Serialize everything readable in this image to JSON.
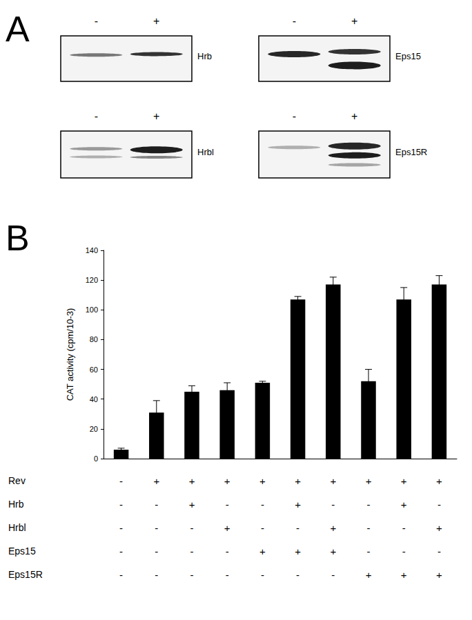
{
  "panel_a": {
    "label": "A",
    "blots": [
      {
        "name": "Hrb",
        "lanes": [
          "-",
          "+"
        ]
      },
      {
        "name": "Eps15",
        "lanes": [
          "-",
          "+"
        ]
      },
      {
        "name": "Hrbl",
        "lanes": [
          "-",
          "+"
        ]
      },
      {
        "name": "Eps15R",
        "lanes": [
          "-",
          "+"
        ]
      }
    ]
  },
  "panel_b_label": "B",
  "chart_data": {
    "type": "bar",
    "y_label": "CAT activity (cpm/10-3)",
    "categories": [
      null,
      null,
      null,
      null,
      null,
      null,
      null,
      null,
      null,
      null
    ],
    "values": [
      6,
      31,
      45,
      46,
      51,
      107,
      117,
      52,
      107,
      117
    ],
    "errors": [
      1,
      8,
      4,
      5,
      1,
      2,
      5,
      8,
      8,
      6
    ],
    "color": "#000000",
    "ylim": [
      0,
      140
    ],
    "yticks": [
      0,
      20,
      40,
      60,
      80,
      100,
      120,
      140
    ],
    "grid": false,
    "tick_labels": "y"
  },
  "conditions": [
    {
      "name": "Rev",
      "marks": [
        "-",
        "+",
        "+",
        "+",
        "+",
        "+",
        "+",
        "+",
        "+",
        "+"
      ]
    },
    {
      "name": "Hrb",
      "marks": [
        "-",
        "-",
        "+",
        "-",
        "-",
        "+",
        "-",
        "-",
        "+",
        "-"
      ]
    },
    {
      "name": "Hrbl",
      "marks": [
        "-",
        "-",
        "-",
        "+",
        "-",
        "-",
        "+",
        "-",
        "-",
        "+"
      ]
    },
    {
      "name": "Eps15",
      "marks": [
        "-",
        "-",
        "-",
        "-",
        "+",
        "+",
        "+",
        "-",
        "-",
        "-"
      ]
    },
    {
      "name": "Eps15R",
      "marks": [
        "-",
        "-",
        "-",
        "-",
        "-",
        "-",
        "-",
        "+",
        "+",
        "+"
      ]
    }
  ]
}
